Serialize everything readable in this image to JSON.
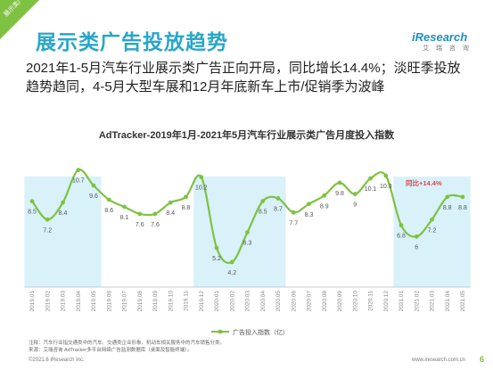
{
  "corner_tag": "展示类广告",
  "header": {
    "title": "展示类广告投放趋势",
    "logo_main": "iResearch",
    "logo_sub": "艾 瑞 咨 询"
  },
  "subtitle": "2021年1-5月汽车行业展示类广告正向开局，同比增长14.4%；淡旺季投放趋势趋同，4-5月大型车展和12月年底新车上市/促销季为波峰",
  "footer": {
    "notes": [
      "注释：汽车行业指交通类中的汽车、交通类企业形象、机动车相关服务中的汽车销售分类。",
      "来源：艾瑞咨询 AdTracker多平台网络广告监测数据库（桌面及智能终端）。"
    ],
    "copyright": "©2021.6 iResearch Inc.",
    "url": "www.iresearch.com.cn",
    "page": "6"
  },
  "colors": {
    "accent": "#2aa6c9",
    "line": "#7ec242",
    "highlight_band": "#d9f1f9",
    "annotation": "#e0454b"
  },
  "chart_data": {
    "type": "line",
    "title": "AdTracker-2019年1月-2021年5月汽车行业展示类广告月度投入指数",
    "categories": [
      "2019.01",
      "2019.02",
      "2019.03",
      "2019.04",
      "2019.05",
      "2019.06",
      "2019.07",
      "2019.08",
      "2019.09",
      "2019.10",
      "2019.11",
      "2019.12",
      "2020.01",
      "2020.02",
      "2020.03",
      "2020.04",
      "2020.05",
      "2020.06",
      "2020.07",
      "2020.08",
      "2020.09",
      "2020.10",
      "2020.11",
      "2020.12",
      "2021.01",
      "2021.02",
      "2021.03",
      "2021.04",
      "2021.05"
    ],
    "series": [
      {
        "name": "广告投入指数（亿）",
        "values": [
          8.5,
          7.2,
          8.4,
          10.7,
          9.6,
          8.6,
          8.1,
          7.6,
          7.6,
          8.4,
          8.8,
          10.2,
          5.2,
          4.2,
          6.3,
          8.5,
          8.7,
          7.7,
          8.3,
          8.9,
          9.8,
          9.0,
          10.1,
          10.3,
          6.8,
          6.0,
          7.2,
          8.8,
          8.8
        ]
      }
    ],
    "highlight_ranges": [
      [
        0,
        4
      ],
      [
        11,
        16
      ],
      [
        24,
        28
      ]
    ],
    "annotation": "同比+14.4%",
    "legend_position": "bottom-right",
    "ylim": [
      3,
      12
    ]
  }
}
